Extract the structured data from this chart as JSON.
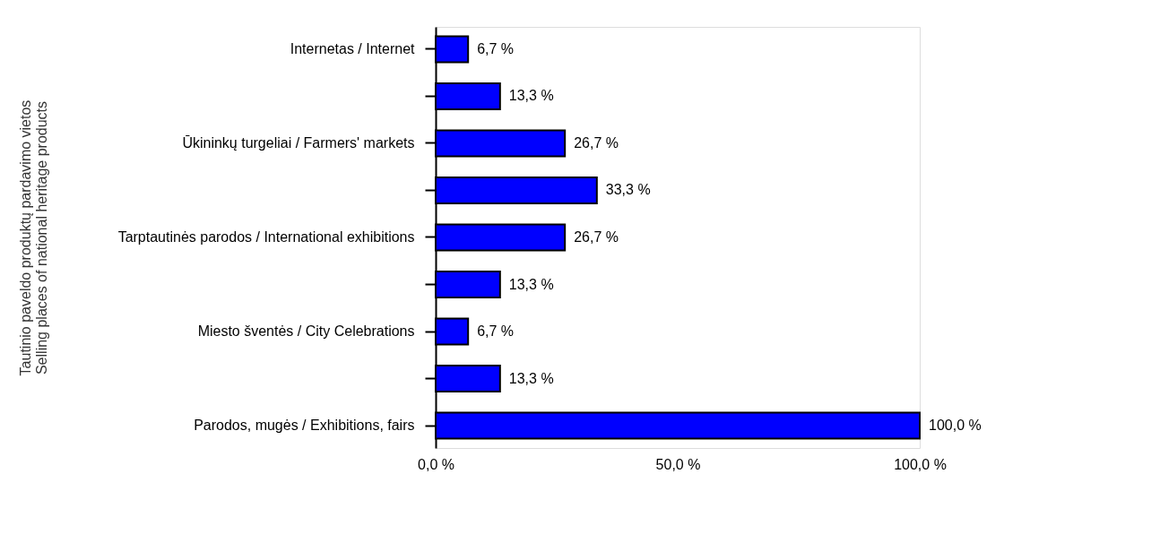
{
  "chart_data": {
    "type": "bar",
    "orientation": "horizontal",
    "ylabel": "Tautinio paveldo produktų pardavimo vietos\nSelling places of national heritage products",
    "categories": [
      "Internetas / Internet",
      null,
      "Ūkininkų turgeliai / Farmers' markets",
      null,
      "Tarptautinės parodos / International exhibitions",
      null,
      "Miesto šventės / City Celebrations",
      null,
      "Parodos, mugės / Exhibitions, fairs"
    ],
    "values": [
      6.7,
      13.3,
      26.7,
      33.3,
      26.7,
      13.3,
      6.7,
      13.3,
      100.0
    ],
    "value_labels": [
      "6,7 %",
      "13,3 %",
      "26,7 %",
      "33,3 %",
      "26,7 %",
      "13,3 %",
      "6,7 %",
      "13,3 %",
      "100,0  %"
    ],
    "color": "#0000ff",
    "xlim": [
      0,
      100
    ],
    "xticks": [
      {
        "value": 0,
        "label": "0,0  %"
      },
      {
        "value": 50,
        "label": "50,0  %"
      },
      {
        "value": 100,
        "label": "100,0  %"
      }
    ],
    "grid": false
  }
}
